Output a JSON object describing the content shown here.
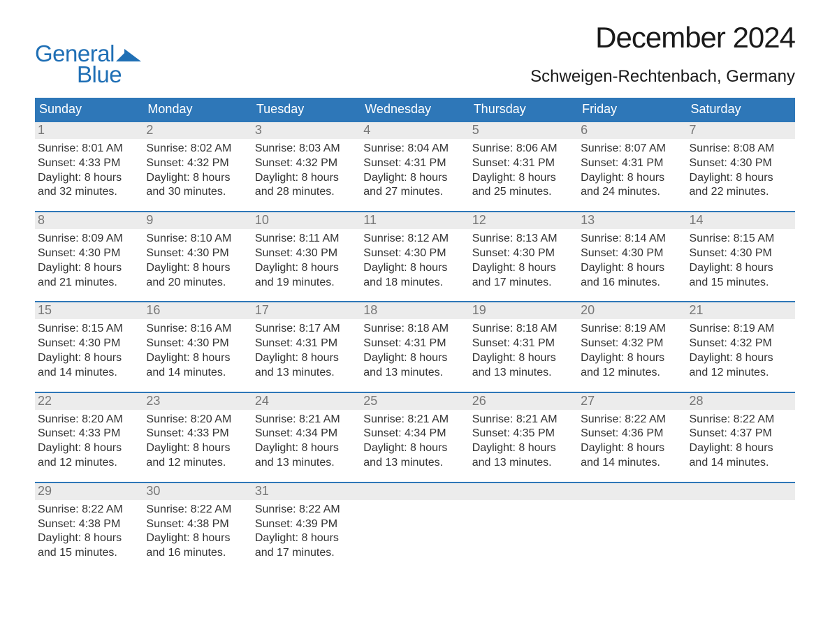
{
  "branding": {
    "word1": "General",
    "word2": "Blue",
    "brand_color": "#1f6fb5",
    "mark_color": "#1f6fb5"
  },
  "header": {
    "month_title": "December 2024",
    "location": "Schweigen-Rechtenbach, Germany"
  },
  "colors": {
    "header_row_bg": "#2e77b8",
    "header_row_text": "#ffffff",
    "day_number_bg": "#ececec",
    "day_number_text": "#777777",
    "week_top_border": "#2e77b8",
    "body_text": "#333333",
    "page_bg": "#ffffff"
  },
  "day_names": [
    "Sunday",
    "Monday",
    "Tuesday",
    "Wednesday",
    "Thursday",
    "Friday",
    "Saturday"
  ],
  "weeks": [
    {
      "days": [
        {
          "num": "1",
          "sunrise": "Sunrise: 8:01 AM",
          "sunset": "Sunset: 4:33 PM",
          "dl1": "Daylight: 8 hours",
          "dl2": "and 32 minutes."
        },
        {
          "num": "2",
          "sunrise": "Sunrise: 8:02 AM",
          "sunset": "Sunset: 4:32 PM",
          "dl1": "Daylight: 8 hours",
          "dl2": "and 30 minutes."
        },
        {
          "num": "3",
          "sunrise": "Sunrise: 8:03 AM",
          "sunset": "Sunset: 4:32 PM",
          "dl1": "Daylight: 8 hours",
          "dl2": "and 28 minutes."
        },
        {
          "num": "4",
          "sunrise": "Sunrise: 8:04 AM",
          "sunset": "Sunset: 4:31 PM",
          "dl1": "Daylight: 8 hours",
          "dl2": "and 27 minutes."
        },
        {
          "num": "5",
          "sunrise": "Sunrise: 8:06 AM",
          "sunset": "Sunset: 4:31 PM",
          "dl1": "Daylight: 8 hours",
          "dl2": "and 25 minutes."
        },
        {
          "num": "6",
          "sunrise": "Sunrise: 8:07 AM",
          "sunset": "Sunset: 4:31 PM",
          "dl1": "Daylight: 8 hours",
          "dl2": "and 24 minutes."
        },
        {
          "num": "7",
          "sunrise": "Sunrise: 8:08 AM",
          "sunset": "Sunset: 4:30 PM",
          "dl1": "Daylight: 8 hours",
          "dl2": "and 22 minutes."
        }
      ]
    },
    {
      "days": [
        {
          "num": "8",
          "sunrise": "Sunrise: 8:09 AM",
          "sunset": "Sunset: 4:30 PM",
          "dl1": "Daylight: 8 hours",
          "dl2": "and 21 minutes."
        },
        {
          "num": "9",
          "sunrise": "Sunrise: 8:10 AM",
          "sunset": "Sunset: 4:30 PM",
          "dl1": "Daylight: 8 hours",
          "dl2": "and 20 minutes."
        },
        {
          "num": "10",
          "sunrise": "Sunrise: 8:11 AM",
          "sunset": "Sunset: 4:30 PM",
          "dl1": "Daylight: 8 hours",
          "dl2": "and 19 minutes."
        },
        {
          "num": "11",
          "sunrise": "Sunrise: 8:12 AM",
          "sunset": "Sunset: 4:30 PM",
          "dl1": "Daylight: 8 hours",
          "dl2": "and 18 minutes."
        },
        {
          "num": "12",
          "sunrise": "Sunrise: 8:13 AM",
          "sunset": "Sunset: 4:30 PM",
          "dl1": "Daylight: 8 hours",
          "dl2": "and 17 minutes."
        },
        {
          "num": "13",
          "sunrise": "Sunrise: 8:14 AM",
          "sunset": "Sunset: 4:30 PM",
          "dl1": "Daylight: 8 hours",
          "dl2": "and 16 minutes."
        },
        {
          "num": "14",
          "sunrise": "Sunrise: 8:15 AM",
          "sunset": "Sunset: 4:30 PM",
          "dl1": "Daylight: 8 hours",
          "dl2": "and 15 minutes."
        }
      ]
    },
    {
      "days": [
        {
          "num": "15",
          "sunrise": "Sunrise: 8:15 AM",
          "sunset": "Sunset: 4:30 PM",
          "dl1": "Daylight: 8 hours",
          "dl2": "and 14 minutes."
        },
        {
          "num": "16",
          "sunrise": "Sunrise: 8:16 AM",
          "sunset": "Sunset: 4:30 PM",
          "dl1": "Daylight: 8 hours",
          "dl2": "and 14 minutes."
        },
        {
          "num": "17",
          "sunrise": "Sunrise: 8:17 AM",
          "sunset": "Sunset: 4:31 PM",
          "dl1": "Daylight: 8 hours",
          "dl2": "and 13 minutes."
        },
        {
          "num": "18",
          "sunrise": "Sunrise: 8:18 AM",
          "sunset": "Sunset: 4:31 PM",
          "dl1": "Daylight: 8 hours",
          "dl2": "and 13 minutes."
        },
        {
          "num": "19",
          "sunrise": "Sunrise: 8:18 AM",
          "sunset": "Sunset: 4:31 PM",
          "dl1": "Daylight: 8 hours",
          "dl2": "and 13 minutes."
        },
        {
          "num": "20",
          "sunrise": "Sunrise: 8:19 AM",
          "sunset": "Sunset: 4:32 PM",
          "dl1": "Daylight: 8 hours",
          "dl2": "and 12 minutes."
        },
        {
          "num": "21",
          "sunrise": "Sunrise: 8:19 AM",
          "sunset": "Sunset: 4:32 PM",
          "dl1": "Daylight: 8 hours",
          "dl2": "and 12 minutes."
        }
      ]
    },
    {
      "days": [
        {
          "num": "22",
          "sunrise": "Sunrise: 8:20 AM",
          "sunset": "Sunset: 4:33 PM",
          "dl1": "Daylight: 8 hours",
          "dl2": "and 12 minutes."
        },
        {
          "num": "23",
          "sunrise": "Sunrise: 8:20 AM",
          "sunset": "Sunset: 4:33 PM",
          "dl1": "Daylight: 8 hours",
          "dl2": "and 12 minutes."
        },
        {
          "num": "24",
          "sunrise": "Sunrise: 8:21 AM",
          "sunset": "Sunset: 4:34 PM",
          "dl1": "Daylight: 8 hours",
          "dl2": "and 13 minutes."
        },
        {
          "num": "25",
          "sunrise": "Sunrise: 8:21 AM",
          "sunset": "Sunset: 4:34 PM",
          "dl1": "Daylight: 8 hours",
          "dl2": "and 13 minutes."
        },
        {
          "num": "26",
          "sunrise": "Sunrise: 8:21 AM",
          "sunset": "Sunset: 4:35 PM",
          "dl1": "Daylight: 8 hours",
          "dl2": "and 13 minutes."
        },
        {
          "num": "27",
          "sunrise": "Sunrise: 8:22 AM",
          "sunset": "Sunset: 4:36 PM",
          "dl1": "Daylight: 8 hours",
          "dl2": "and 14 minutes."
        },
        {
          "num": "28",
          "sunrise": "Sunrise: 8:22 AM",
          "sunset": "Sunset: 4:37 PM",
          "dl1": "Daylight: 8 hours",
          "dl2": "and 14 minutes."
        }
      ]
    },
    {
      "days": [
        {
          "num": "29",
          "sunrise": "Sunrise: 8:22 AM",
          "sunset": "Sunset: 4:38 PM",
          "dl1": "Daylight: 8 hours",
          "dl2": "and 15 minutes."
        },
        {
          "num": "30",
          "sunrise": "Sunrise: 8:22 AM",
          "sunset": "Sunset: 4:38 PM",
          "dl1": "Daylight: 8 hours",
          "dl2": "and 16 minutes."
        },
        {
          "num": "31",
          "sunrise": "Sunrise: 8:22 AM",
          "sunset": "Sunset: 4:39 PM",
          "dl1": "Daylight: 8 hours",
          "dl2": "and 17 minutes."
        },
        {
          "num": "",
          "sunrise": "",
          "sunset": "",
          "dl1": "",
          "dl2": ""
        },
        {
          "num": "",
          "sunrise": "",
          "sunset": "",
          "dl1": "",
          "dl2": ""
        },
        {
          "num": "",
          "sunrise": "",
          "sunset": "",
          "dl1": "",
          "dl2": ""
        },
        {
          "num": "",
          "sunrise": "",
          "sunset": "",
          "dl1": "",
          "dl2": ""
        }
      ]
    }
  ]
}
